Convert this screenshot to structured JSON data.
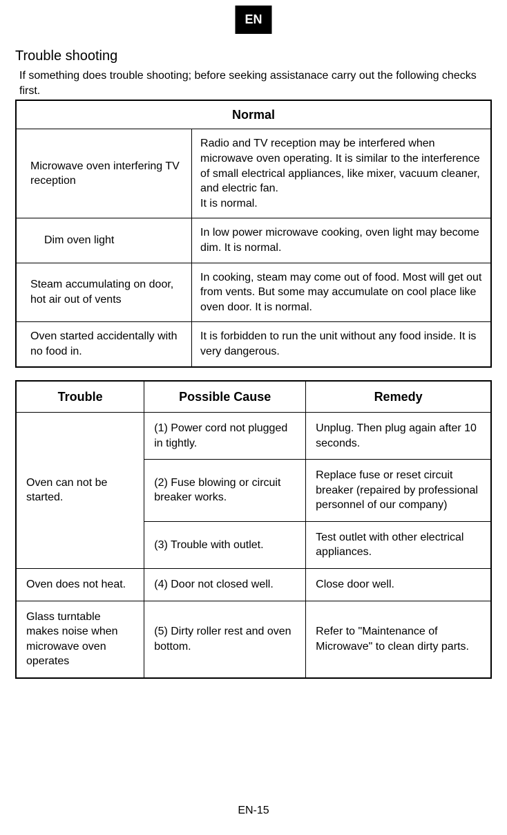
{
  "lang_badge": "EN",
  "title": "Trouble shooting",
  "intro": "If something does trouble shooting; before seeking assistanace carry out the following checks first.",
  "normal_table": {
    "header": "Normal",
    "rows": [
      {
        "left": "Microwave oven interfering TV reception",
        "right": "Radio and TV reception may be interfered when microwave oven operating. It is similar to the interference of small electrical appliances, like mixer, vacuum cleaner, and electric fan.\nIt is normal."
      },
      {
        "left": "Dim oven light",
        "right": "In low power microwave cooking, oven light may become dim. It is normal."
      },
      {
        "left": "Steam accumulating on door, hot air out of vents",
        "right": "In cooking, steam may come out of food. Most will get out from vents. But some may accumulate on cool place like oven door. It is normal."
      },
      {
        "left": "Oven started accidentally with no food in.",
        "right": "It is forbidden to run the unit without any food inside. It is very dangerous."
      }
    ]
  },
  "trouble_table": {
    "headers": {
      "c1": "Trouble",
      "c2": "Possible Cause",
      "c3": "Remedy"
    },
    "r0": {
      "trouble": "Oven can not be started.",
      "cause": "(1) Power cord not plugged in tightly.",
      "remedy": "Unplug. Then plug again after 10 seconds."
    },
    "r1": {
      "cause": "(2) Fuse blowing or circuit breaker works.",
      "remedy": "Replace fuse or reset circuit breaker (repaired by professional personnel of our company)"
    },
    "r2": {
      "cause": "(3) Trouble with outlet.",
      "remedy": "Test outlet with other electrical appliances."
    },
    "r3": {
      "trouble": "Oven does not heat.",
      "cause": "(4) Door not closed well.",
      "remedy": "Close door well."
    },
    "r4": {
      "trouble": "Glass turntable makes noise when microwave oven operates",
      "cause": "(5) Dirty roller rest and oven bottom.",
      "remedy": "Refer to \"Maintenance of Microwave\" to clean dirty parts."
    }
  },
  "page_number": "EN-15"
}
